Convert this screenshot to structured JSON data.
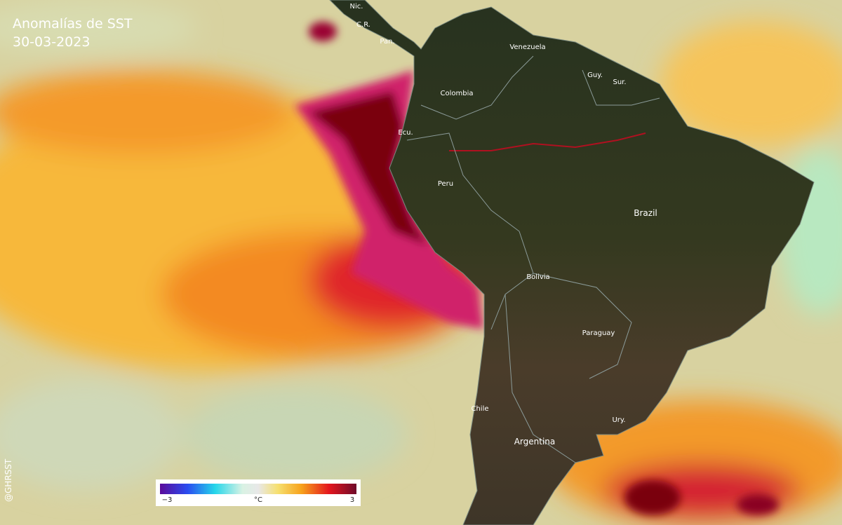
{
  "header": {
    "title": "Anomalías de SST",
    "date": "30-03-2023"
  },
  "labels": {
    "nicaragua": "Nic.",
    "costa_rica": "C.R.",
    "panama": "Pan.",
    "venezuela": "Venezuela",
    "guyana": "Guy.",
    "suriname": "Sur.",
    "colombia": "Colombia",
    "ecuador": "Ecu.",
    "peru": "Peru",
    "brazil": "Brazil",
    "bolivia": "Bolivia",
    "paraguay": "Paraguay",
    "chile": "Chile",
    "argentina": "Argentina",
    "uruguay": "Ury."
  },
  "legend": {
    "min_label": "−3",
    "unit": "°C",
    "max_label": "3"
  },
  "credit": "@GHRSST"
}
